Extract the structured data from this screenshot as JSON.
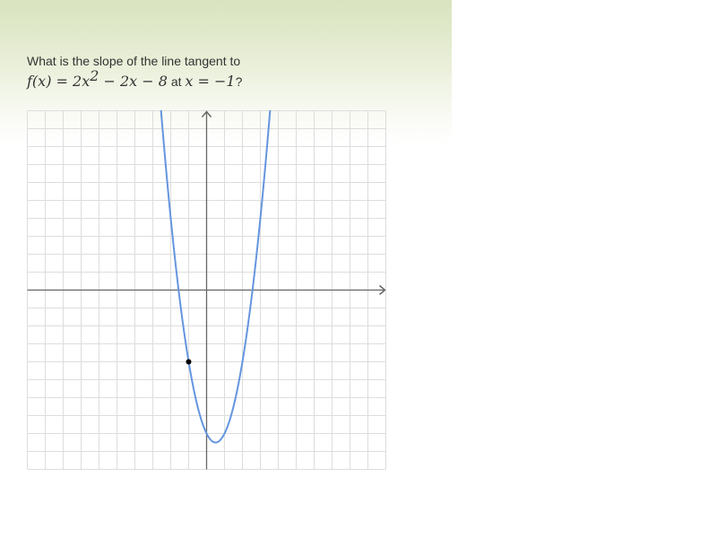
{
  "question": {
    "text": "What is the slope of the line tangent to",
    "function_lhs": "f(x) = 2x",
    "function_exp": "2",
    "function_rest": " − 2x − 8",
    "at_word": " at ",
    "point_expr": "x = −1",
    "question_mark": "?"
  },
  "colors": {
    "curve": "#6495df",
    "grid": "#dddddd",
    "axis": "#666666",
    "point": "#000000"
  },
  "chart_data": {
    "type": "line",
    "function": "2x^2 - 2x - 8",
    "coefficients": {
      "a": 2,
      "b": -2,
      "c": -8
    },
    "xlim": [
      -10,
      10
    ],
    "ylim": [
      -10,
      10
    ],
    "grid": true,
    "grid_step": 1,
    "highlight_point": {
      "x": -1,
      "y": -4
    }
  }
}
